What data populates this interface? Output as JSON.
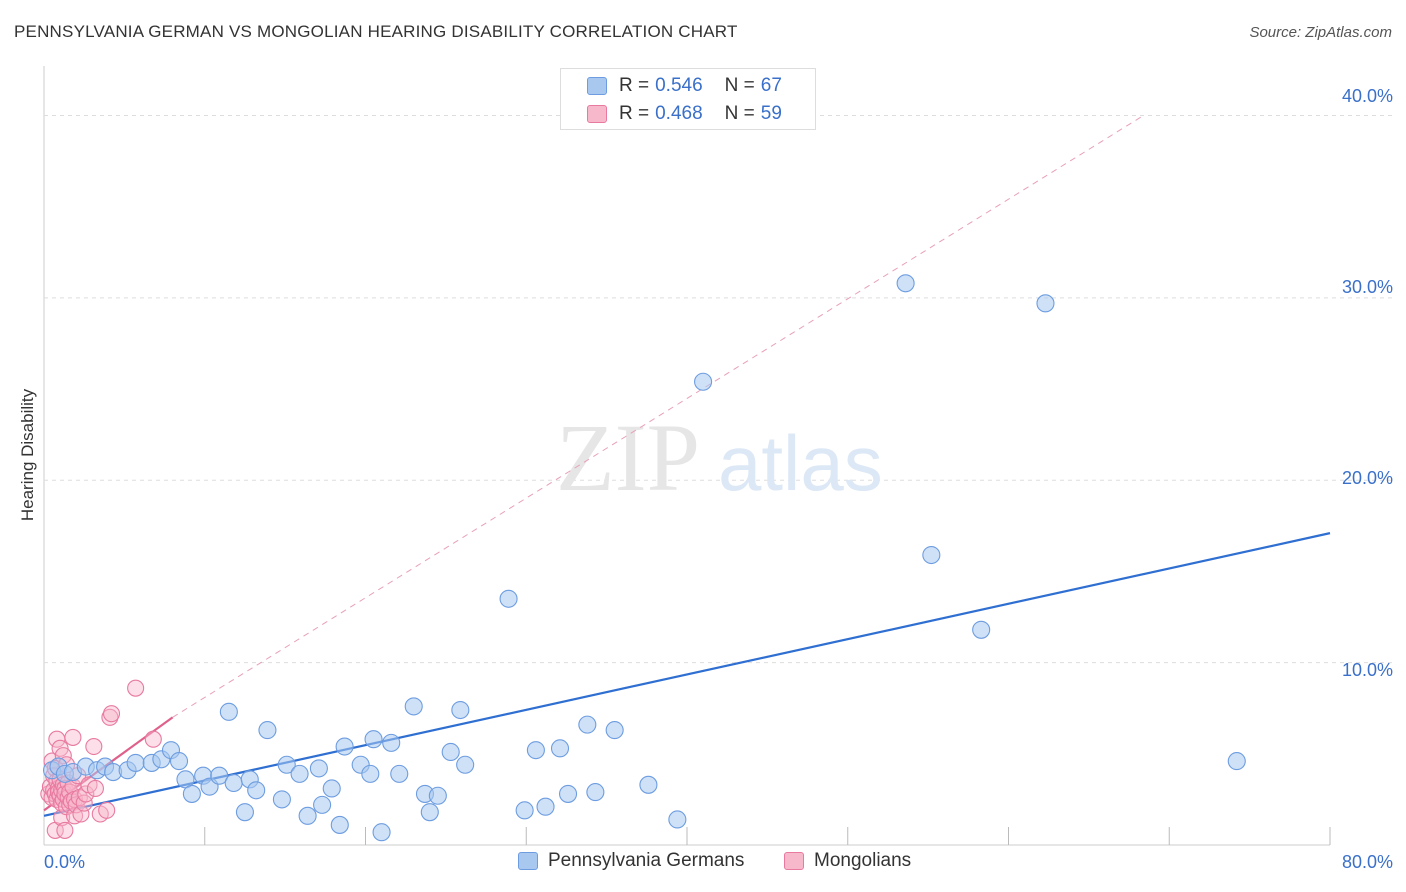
{
  "title": "PENNSYLVANIA GERMAN VS MONGOLIAN HEARING DISABILITY CORRELATION CHART",
  "source": "Source: ZipAtlas.com",
  "watermark": {
    "zip": "ZIP",
    "atlas": "atlas"
  },
  "colors": {
    "blue_fill": "#a8c8f0",
    "blue_stroke": "#6d9de0",
    "blue_line": "#2f6fd1",
    "pink_fill": "#f8b8cc",
    "pink_stroke": "#e87aa0",
    "pink_line": "#e0608c",
    "grid": "#dddddd",
    "axis_text": "#3a70c9"
  },
  "legend": {
    "rows": [
      {
        "r_label": "R = ",
        "r_value": "0.546",
        "n_label": "N = ",
        "n_value": "67"
      },
      {
        "r_label": "R = ",
        "r_value": "0.468",
        "n_label": "N = ",
        "n_value": "59"
      }
    ],
    "bottom": [
      "Pennsylvania Germans",
      "Mongolians"
    ]
  },
  "chart_data": {
    "type": "scatter",
    "title": "PENNSYLVANIA GERMAN VS MONGOLIAN HEARING DISABILITY CORRELATION CHART",
    "xlabel": "",
    "ylabel": "Hearing Disability",
    "xlim": [
      0,
      80
    ],
    "ylim": [
      0,
      42
    ],
    "y_ticks": [
      10,
      20,
      30,
      40
    ],
    "y_tick_labels": [
      "10.0%",
      "20.0%",
      "30.0%",
      "40.0%"
    ],
    "x_tick_labels": [
      "0.0%",
      "80.0%"
    ],
    "grid": true,
    "legend_position": "top-center",
    "series": [
      {
        "name": "Pennsylvania Germans",
        "r": 0.546,
        "n": 67,
        "trend": {
          "x": [
            0,
            80
          ],
          "y": [
            1.6,
            17.1
          ]
        },
        "points": [
          [
            0.5,
            4.1
          ],
          [
            0.9,
            4.3
          ],
          [
            1.3,
            3.9
          ],
          [
            1.8,
            4.0
          ],
          [
            2.6,
            4.3
          ],
          [
            3.3,
            4.1
          ],
          [
            3.8,
            4.3
          ],
          [
            4.3,
            4.0
          ],
          [
            5.2,
            4.1
          ],
          [
            5.7,
            4.5
          ],
          [
            6.7,
            4.5
          ],
          [
            7.3,
            4.7
          ],
          [
            7.9,
            5.2
          ],
          [
            8.4,
            4.6
          ],
          [
            8.8,
            3.6
          ],
          [
            9.2,
            2.8
          ],
          [
            9.9,
            3.8
          ],
          [
            10.3,
            3.2
          ],
          [
            10.9,
            3.8
          ],
          [
            11.5,
            7.3
          ],
          [
            11.8,
            3.4
          ],
          [
            12.5,
            1.8
          ],
          [
            12.8,
            3.6
          ],
          [
            13.2,
            3.0
          ],
          [
            13.9,
            6.3
          ],
          [
            14.8,
            2.5
          ],
          [
            15.1,
            4.4
          ],
          [
            15.9,
            3.9
          ],
          [
            16.4,
            1.6
          ],
          [
            17.1,
            4.2
          ],
          [
            17.3,
            2.2
          ],
          [
            17.9,
            3.1
          ],
          [
            18.4,
            1.1
          ],
          [
            18.7,
            5.4
          ],
          [
            19.7,
            4.4
          ],
          [
            20.3,
            3.9
          ],
          [
            20.5,
            5.8
          ],
          [
            21.0,
            0.7
          ],
          [
            21.6,
            5.6
          ],
          [
            22.1,
            3.9
          ],
          [
            23.0,
            7.6
          ],
          [
            23.7,
            2.8
          ],
          [
            24.0,
            1.8
          ],
          [
            24.5,
            2.7
          ],
          [
            25.3,
            5.1
          ],
          [
            25.9,
            7.4
          ],
          [
            26.2,
            4.4
          ],
          [
            28.9,
            13.5
          ],
          [
            29.9,
            1.9
          ],
          [
            30.6,
            5.2
          ],
          [
            31.2,
            2.1
          ],
          [
            32.1,
            5.3
          ],
          [
            32.6,
            2.8
          ],
          [
            33.8,
            6.6
          ],
          [
            34.3,
            2.9
          ],
          [
            35.5,
            6.3
          ],
          [
            37.6,
            3.3
          ],
          [
            39.4,
            1.4
          ],
          [
            41.0,
            25.4
          ],
          [
            53.6,
            30.8
          ],
          [
            55.2,
            15.9
          ],
          [
            58.3,
            11.8
          ],
          [
            62.3,
            29.7
          ],
          [
            74.2,
            4.6
          ]
        ]
      },
      {
        "name": "Mongolians",
        "r": 0.468,
        "n": 59,
        "trend": {
          "x": [
            0,
            8
          ],
          "y": [
            1.9,
            7.0
          ]
        },
        "trend_extension": {
          "x": [
            8,
            68.4
          ],
          "y": [
            7.0,
            40.0
          ]
        },
        "points": [
          [
            0.3,
            2.8
          ],
          [
            0.4,
            3.2
          ],
          [
            0.5,
            2.6
          ],
          [
            0.5,
            4.6
          ],
          [
            0.6,
            3.8
          ],
          [
            0.6,
            3.0
          ],
          [
            0.7,
            2.8
          ],
          [
            0.7,
            4.2
          ],
          [
            0.7,
            0.8
          ],
          [
            0.8,
            3.5
          ],
          [
            0.8,
            2.5
          ],
          [
            0.8,
            5.8
          ],
          [
            0.9,
            3.1
          ],
          [
            0.9,
            2.9
          ],
          [
            1.0,
            3.6
          ],
          [
            1.0,
            5.3
          ],
          [
            1.0,
            2.7
          ],
          [
            1.1,
            3.0
          ],
          [
            1.1,
            1.5
          ],
          [
            1.1,
            2.3
          ],
          [
            1.2,
            3.3
          ],
          [
            1.2,
            4.9
          ],
          [
            1.2,
            2.5
          ],
          [
            1.3,
            3.1
          ],
          [
            1.3,
            2.8
          ],
          [
            1.3,
            0.8
          ],
          [
            1.4,
            4.4
          ],
          [
            1.4,
            2.1
          ],
          [
            1.5,
            2.6
          ],
          [
            1.5,
            3.4
          ],
          [
            1.6,
            2.9
          ],
          [
            1.6,
            2.2
          ],
          [
            1.7,
            2.4
          ],
          [
            1.8,
            3.2
          ],
          [
            1.8,
            5.9
          ],
          [
            1.9,
            2.5
          ],
          [
            1.9,
            1.6
          ],
          [
            2.0,
            2.2
          ],
          [
            2.1,
            3.8
          ],
          [
            2.2,
            2.6
          ],
          [
            2.3,
            1.7
          ],
          [
            2.5,
            2.3
          ],
          [
            2.6,
            2.8
          ],
          [
            2.8,
            3.3
          ],
          [
            3.1,
            5.4
          ],
          [
            3.2,
            3.1
          ],
          [
            3.5,
            1.7
          ],
          [
            3.9,
            1.9
          ],
          [
            4.1,
            7.0
          ],
          [
            4.2,
            7.2
          ],
          [
            5.7,
            8.6
          ],
          [
            6.8,
            5.8
          ]
        ]
      }
    ]
  }
}
